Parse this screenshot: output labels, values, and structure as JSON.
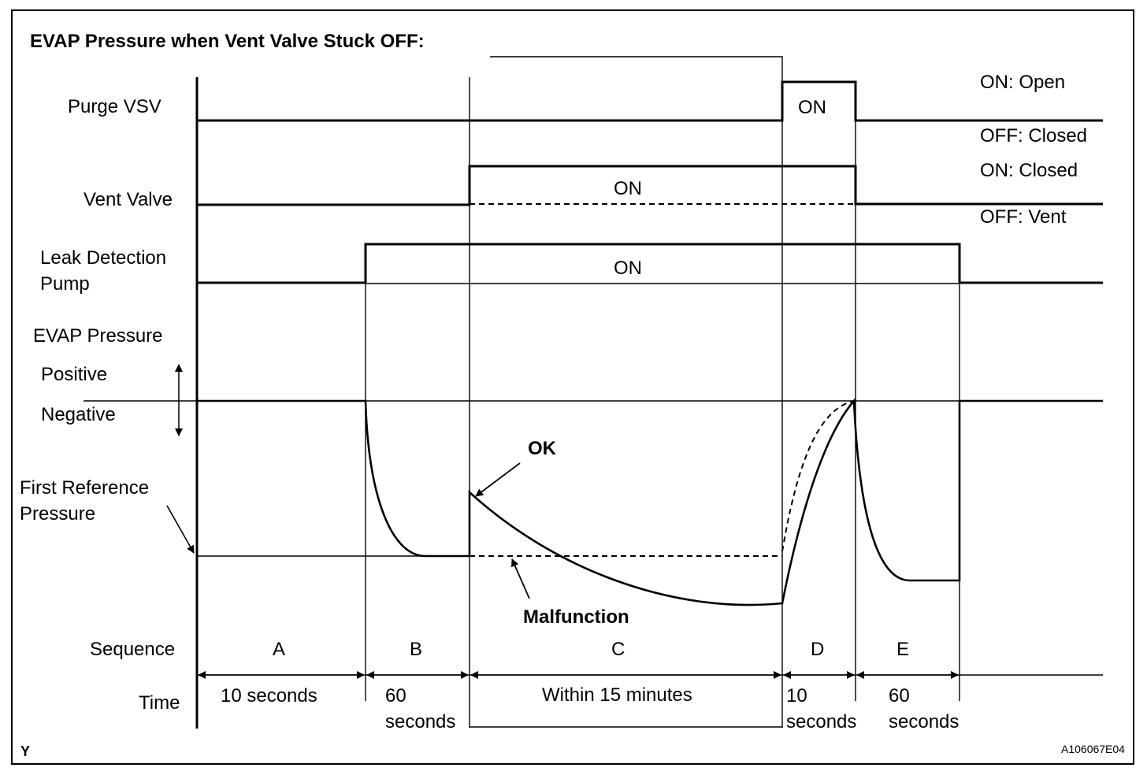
{
  "title": "EVAP Pressure when Vent Valve Stuck OFF:",
  "signals": {
    "purge_vsv": {
      "label": "Purge VSV",
      "on_text": "ON",
      "state_on": "ON: Open",
      "state_off": "OFF: Closed"
    },
    "vent_valve": {
      "label": "Vent Valve",
      "on_text": "ON",
      "state_on": "ON: Closed",
      "state_off": "OFF: Vent"
    },
    "pump": {
      "label_line1": "Leak Detection",
      "label_line2": "Pump",
      "on_text": "ON"
    }
  },
  "pressure": {
    "heading": "EVAP Pressure",
    "positive": "Positive",
    "negative": "Negative",
    "reference_line1": "First Reference",
    "reference_line2": "Pressure",
    "ok_label": "OK",
    "malfunction_label": "Malfunction"
  },
  "sequence": {
    "label": "Sequence",
    "time_label": "Time",
    "steps": [
      {
        "letter": "A",
        "time": [
          "10 seconds"
        ]
      },
      {
        "letter": "B",
        "time": [
          "60",
          "seconds"
        ]
      },
      {
        "letter": "C",
        "time": [
          "Within 15 minutes"
        ]
      },
      {
        "letter": "D",
        "time": [
          "10",
          "seconds"
        ]
      },
      {
        "letter": "E",
        "time": [
          "60",
          "seconds"
        ]
      }
    ]
  },
  "footer": {
    "left_mark": "Y",
    "figure_code": "A106067E04"
  }
}
